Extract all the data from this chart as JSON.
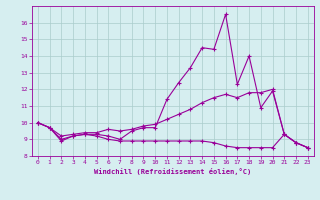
{
  "x": [
    0,
    1,
    2,
    3,
    4,
    5,
    6,
    7,
    8,
    9,
    10,
    11,
    12,
    13,
    14,
    15,
    16,
    17,
    18,
    19,
    20,
    21,
    22,
    23
  ],
  "line1": [
    10.0,
    9.7,
    8.9,
    9.2,
    9.3,
    9.3,
    9.2,
    9.0,
    9.5,
    9.7,
    9.7,
    11.4,
    12.4,
    13.3,
    14.5,
    14.4,
    16.5,
    12.3,
    14.0,
    10.9,
    11.9,
    9.3,
    8.8,
    8.5
  ],
  "line2": [
    10.0,
    9.7,
    9.2,
    9.3,
    9.4,
    9.4,
    9.6,
    9.5,
    9.6,
    9.8,
    9.9,
    10.2,
    10.5,
    10.8,
    11.2,
    11.5,
    11.7,
    11.5,
    11.8,
    11.8,
    12.0,
    9.3,
    8.8,
    8.5
  ],
  "line3": [
    10.0,
    9.7,
    9.0,
    9.2,
    9.3,
    9.2,
    9.0,
    8.9,
    8.9,
    8.9,
    8.9,
    8.9,
    8.9,
    8.9,
    8.9,
    8.8,
    8.6,
    8.5,
    8.5,
    8.5,
    8.5,
    9.3,
    8.8,
    8.5
  ],
  "bg_color": "#d6eef0",
  "line_color": "#990099",
  "grid_color": "#aacccc",
  "xlabel": "Windchill (Refroidissement éolien,°C)",
  "ylim": [
    8,
    17
  ],
  "xlim": [
    -0.5,
    23.5
  ],
  "yticks": [
    8,
    9,
    10,
    11,
    12,
    13,
    14,
    15,
    16
  ],
  "xticks": [
    0,
    1,
    2,
    3,
    4,
    5,
    6,
    7,
    8,
    9,
    10,
    11,
    12,
    13,
    14,
    15,
    16,
    17,
    18,
    19,
    20,
    21,
    22,
    23
  ]
}
